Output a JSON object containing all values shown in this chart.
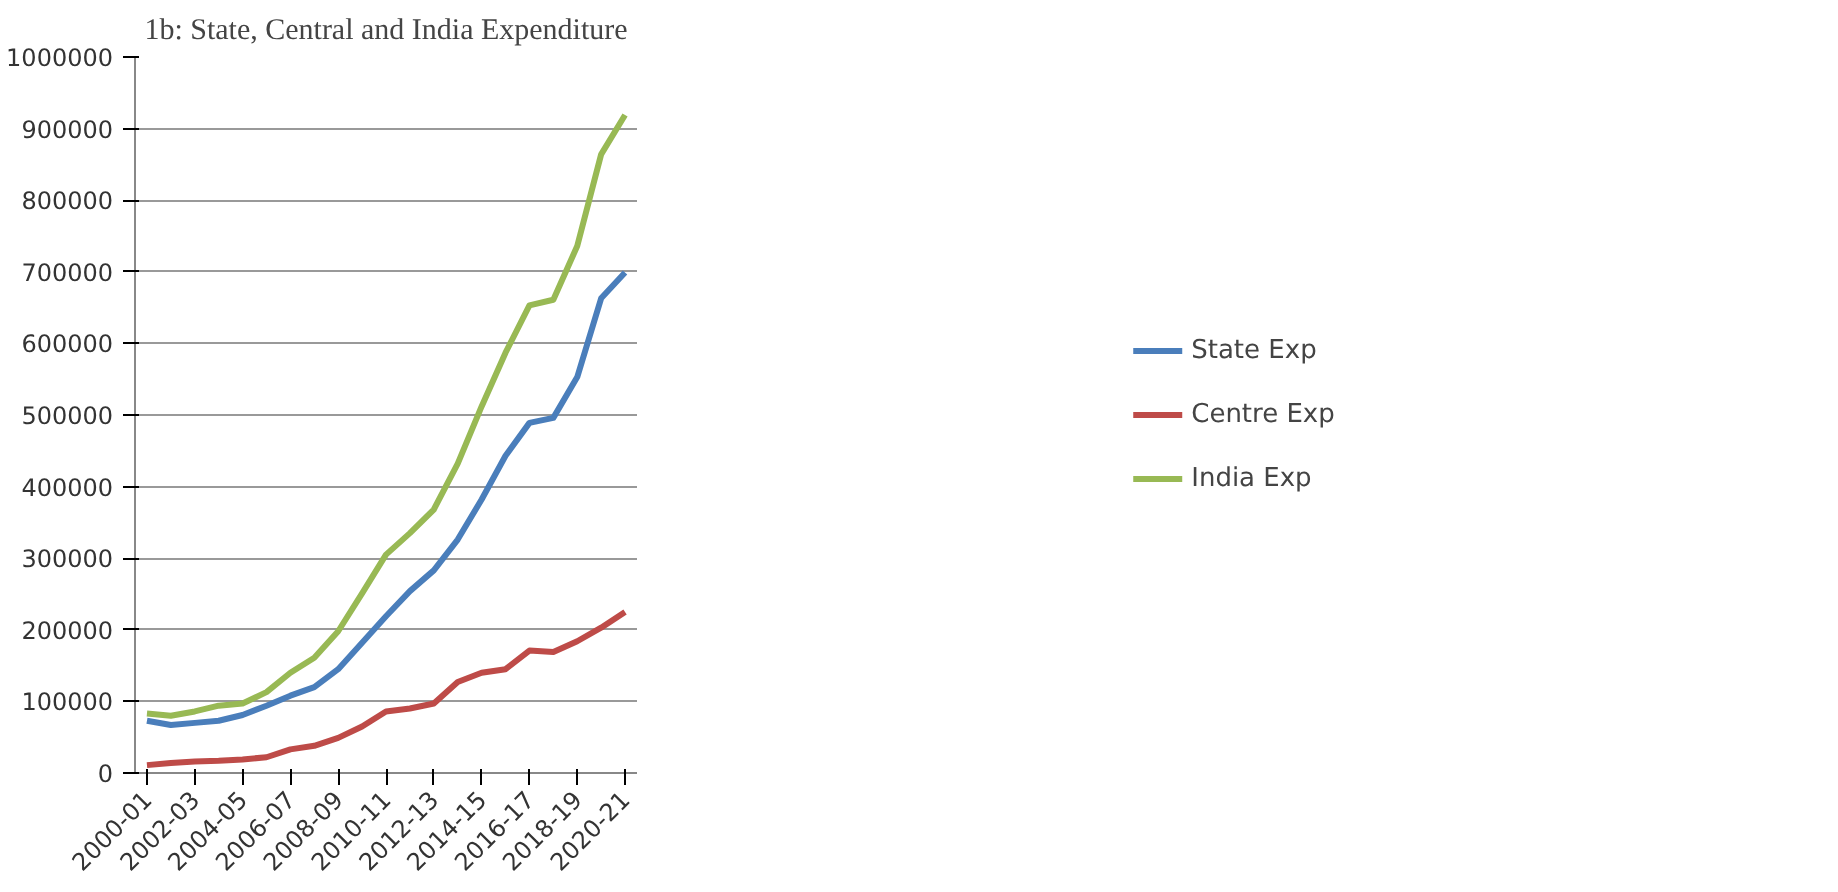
{
  "chart_data": {
    "type": "line",
    "title": "1b: State, Central and India Expenditure",
    "categories": [
      "2000-01",
      null,
      "2002-03",
      null,
      "2004-05",
      null,
      "2006-07",
      null,
      "2008-09",
      null,
      "2010-11",
      null,
      "2012-13",
      null,
      "2014-15",
      null,
      "2016-17",
      null,
      "2018-19",
      null,
      "2020-21"
    ],
    "series": [
      {
        "name": "State Exp",
        "color": "#4a7ebb",
        "values": [
          73000,
          67000,
          70000,
          73000,
          81000,
          94000,
          108000,
          120000,
          145000,
          182000,
          219000,
          254000,
          283000,
          326000,
          382000,
          443000,
          489000,
          496000,
          553000,
          663000,
          699000
        ]
      },
      {
        "name": "Centre Exp",
        "color": "#be4b48",
        "values": [
          11000,
          14000,
          16000,
          17000,
          19000,
          22000,
          33000,
          38000,
          49000,
          65000,
          86000,
          90000,
          97000,
          127000,
          140000,
          145000,
          171000,
          169000,
          184000,
          203000,
          225000
        ]
      },
      {
        "name": "India Exp",
        "color": "#98b954",
        "values": [
          83000,
          80000,
          86000,
          94000,
          97000,
          113000,
          140000,
          161000,
          198000,
          251000,
          305000,
          335000,
          368000,
          432000,
          512000,
          587000,
          653000,
          661000,
          736000,
          864000,
          919000
        ]
      }
    ],
    "ylim": [
      0,
      1000000
    ],
    "yticks": [
      0,
      100000,
      200000,
      300000,
      400000,
      500000,
      600000,
      700000,
      800000,
      900000,
      1000000
    ],
    "grid": "y",
    "legend": "right"
  }
}
